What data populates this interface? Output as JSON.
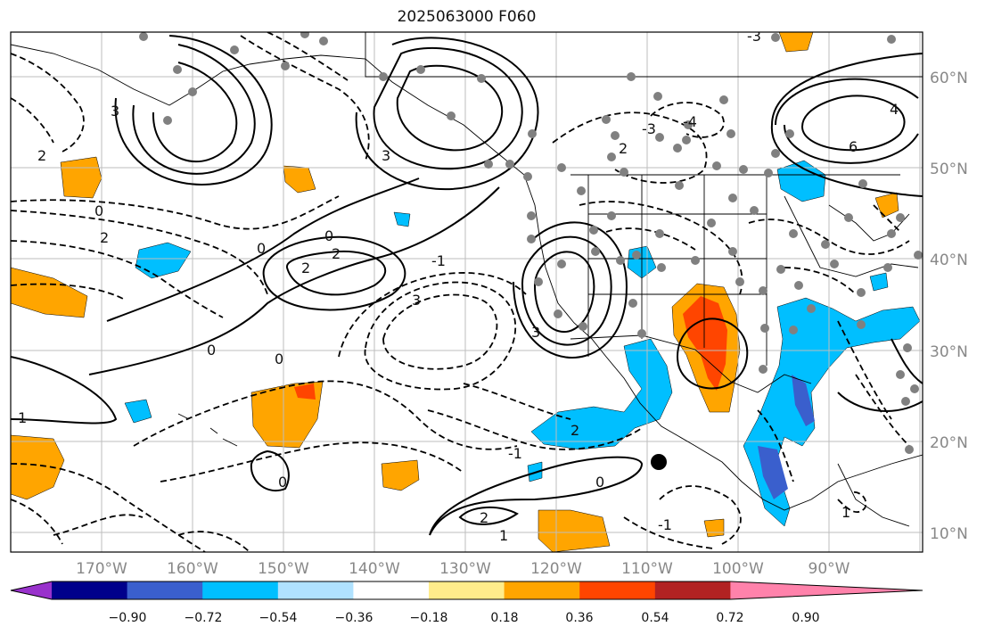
{
  "title": "2025063000 F060",
  "latitude_labels": [
    "60°N",
    "50°N",
    "40°N",
    "30°N",
    "20°N",
    "10°N"
  ],
  "longitude_labels": [
    "170°W",
    "160°W",
    "150°W",
    "140°W",
    "130°W",
    "120°W",
    "110°W",
    "100°W",
    "90°W"
  ],
  "colorbar": {
    "tick_labels": [
      "−0.90",
      "−0.72",
      "−0.54",
      "−0.36",
      "−0.18",
      "0.18",
      "0.36",
      "0.54",
      "0.72",
      "0.90"
    ],
    "colors": [
      "#9932cc",
      "#00008b",
      "#3a5fcd",
      "#00bfff",
      "#b0e2ff",
      "#ffffff",
      "#ffec8b",
      "#ffa500",
      "#ff4500",
      "#b22222",
      "#ff82ab"
    ]
  },
  "contour_labels": [
    "0",
    "2",
    "0",
    "1",
    "2",
    "3",
    "2",
    "0",
    "-1",
    "0",
    "2",
    "4",
    "6",
    "3",
    "2",
    "0",
    "0",
    "-1",
    "0",
    "2",
    "1",
    "2",
    "3",
    "-1",
    "1",
    "-4",
    "-3",
    "3",
    "-3"
  ],
  "colors": {
    "shade_neg": "#00bfff",
    "shade_neg_strong": "#3a5fcd",
    "shade_pos": "#ffa500",
    "shade_pos_strong": "#ff4500",
    "contour": "#000000",
    "station_dot": "#808080"
  }
}
